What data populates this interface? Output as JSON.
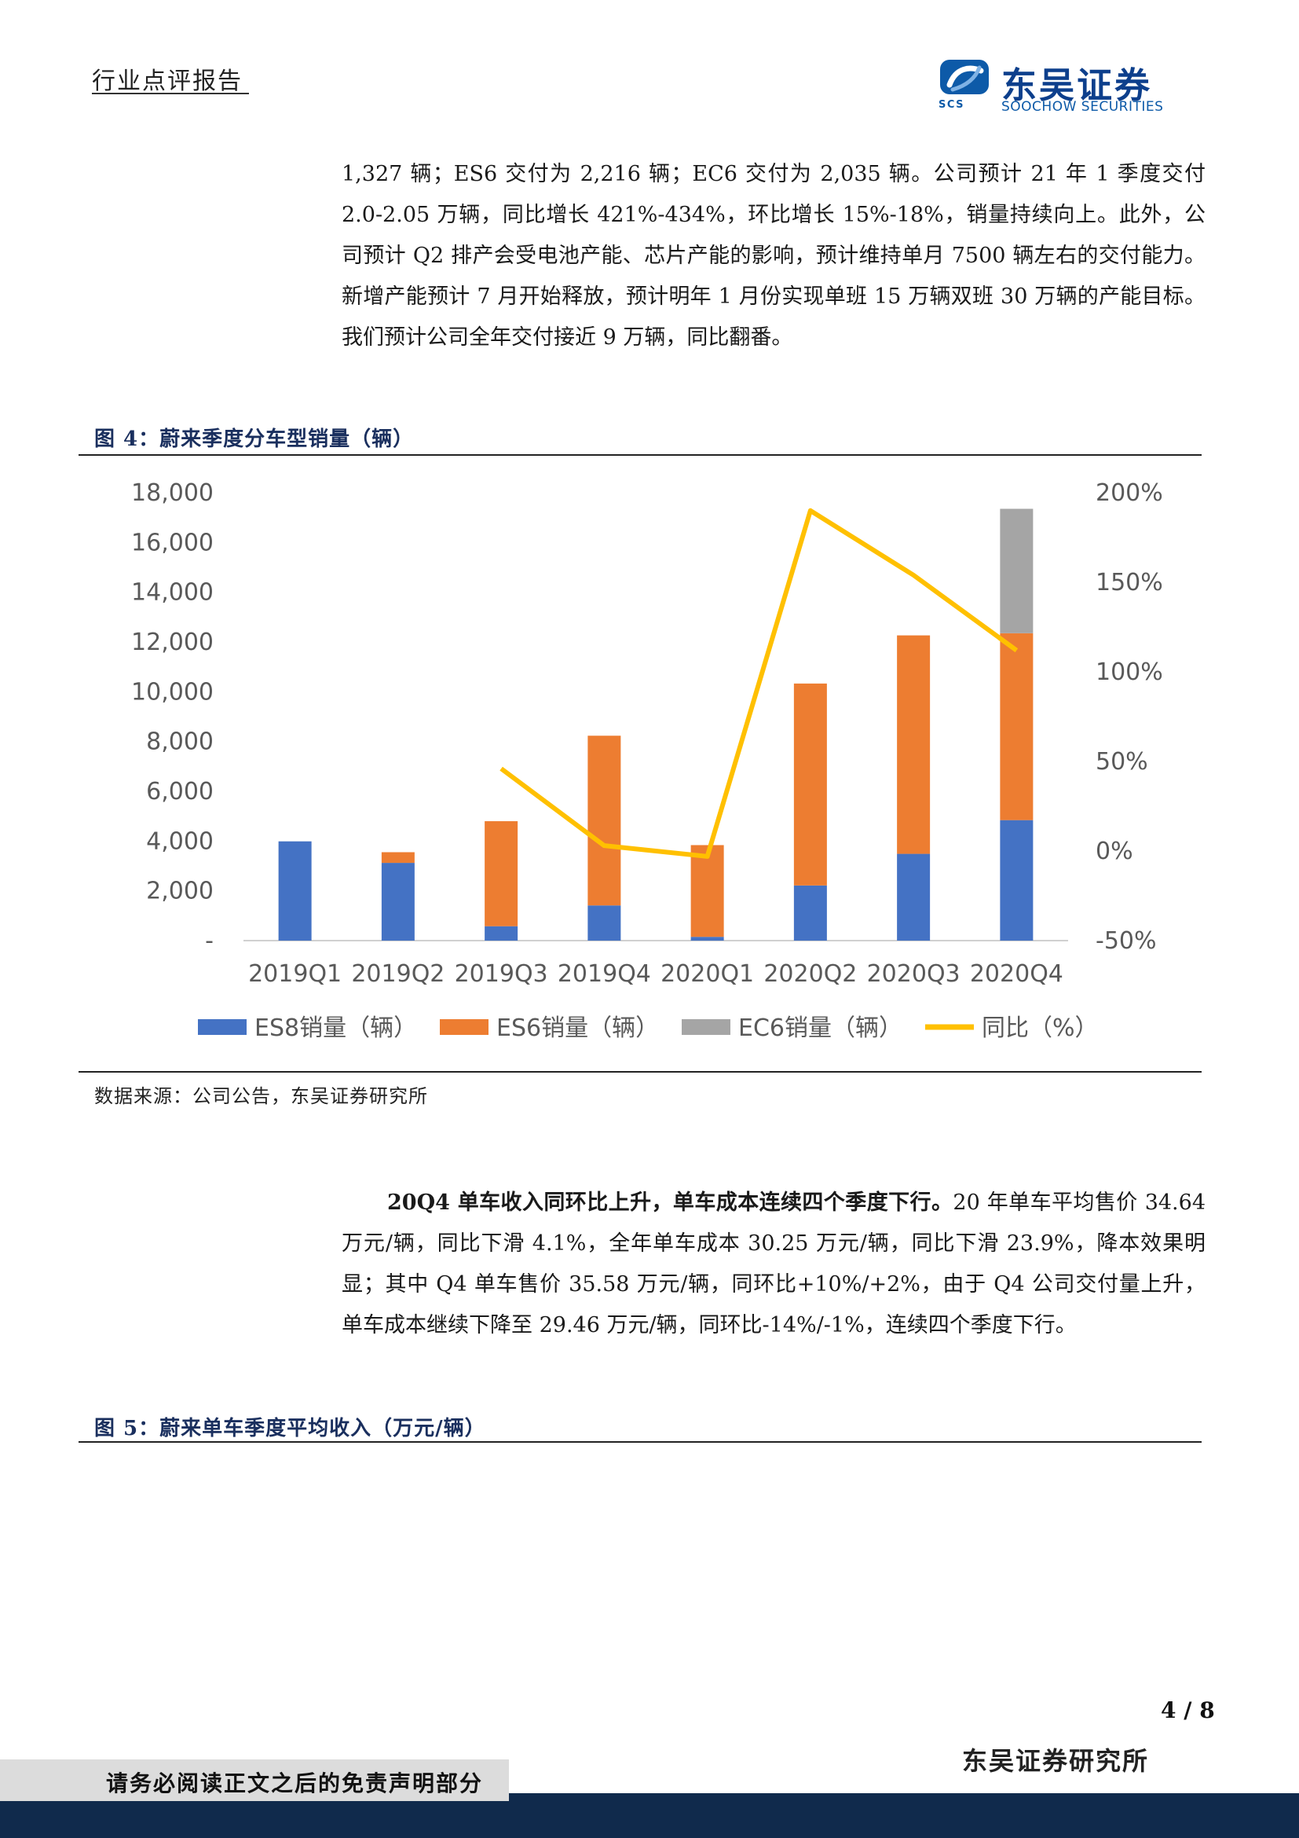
{
  "header": {
    "doc_type": "行业点评报告",
    "logo_cn": "东吴证券",
    "logo_en": "SOOCHOW SECURITIES",
    "logo_abbr": "SCS",
    "brand_color": "#0d3f8c"
  },
  "paragraph1": {
    "text": "1,327 辆；ES6 交付为 2,216 辆；EC6 交付为 2,035 辆。公司预计 21 年 1 季度交付 2.0-2.05 万辆，同比增长 421%-434%，环比增长 15%-18%，销量持续向上。此外，公司预计 Q2 排产会受电池产能、芯片产能的影响，预计维持单月 7500 辆左右的交付能力。新增产能预计 7 月开始释放，预计明年 1 月份实现单班 15 万辆双班 30 万辆的产能目标。我们预计公司全年交付接近 9 万辆，同比翻番。"
  },
  "figure4": {
    "title": "图 4：蔚来季度分车型销量（辆）",
    "source": "数据来源：公司公告，东吴证券研究所"
  },
  "chart_data": {
    "type": "bar",
    "stacked": true,
    "categories": [
      "2019Q1",
      "2019Q2",
      "2019Q3",
      "2019Q4",
      "2020Q1",
      "2020Q2",
      "2020Q3",
      "2020Q4"
    ],
    "series": [
      {
        "name": "ES8销量（辆）",
        "color": "#4472c4",
        "values": [
          3989,
          3124,
          578,
          1413,
          151,
          2215,
          3487,
          4842
        ]
      },
      {
        "name": "ES6销量（辆）",
        "color": "#ed7d31",
        "values": [
          0,
          429,
          4221,
          6821,
          3687,
          8116,
          8779,
          7511
        ]
      },
      {
        "name": "EC6销量（辆）",
        "color": "#a5a5a5",
        "values": [
          0,
          0,
          0,
          0,
          0,
          0,
          0,
          5000
        ]
      }
    ],
    "line_series": {
      "name": "同比（%）",
      "color": "#ffc000",
      "axis": "right",
      "values": [
        null,
        null,
        46,
        3,
        -3,
        190,
        154,
        112
      ]
    },
    "left_axis": {
      "ylim": [
        0,
        18000
      ],
      "ticks": [
        "-",
        "2,000",
        "4,000",
        "6,000",
        "8,000",
        "10,000",
        "12,000",
        "14,000",
        "16,000",
        "18,000"
      ]
    },
    "right_axis": {
      "ylim": [
        -50,
        200
      ],
      "ticks": [
        "-50%",
        "0%",
        "50%",
        "100%",
        "150%",
        "200%"
      ]
    },
    "grid": false,
    "legend_position": "bottom"
  },
  "paragraph2": {
    "lead": "20Q4 单车收入同环比上升，单车成本连续四个季度下行。",
    "text": "20 年单车平均售价 34.64 万元/辆，同比下滑 4.1%，全年单车成本 30.25 万元/辆，同比下滑 23.9%，降本效果明显；其中 Q4 单车售价 35.58 万元/辆，同环比+10%/+2%，由于 Q4 公司交付量上升，单车成本继续下降至 29.46 万元/辆，同环比-14%/-1%，连续四个季度下行。"
  },
  "figure5": {
    "title": "图 5：蔚来单车季度平均收入（万元/辆）"
  },
  "footer": {
    "page": "4 / 8",
    "institute": "东吴证券研究所",
    "disclaimer": "请务必阅读正文之后的免责声明部分"
  }
}
